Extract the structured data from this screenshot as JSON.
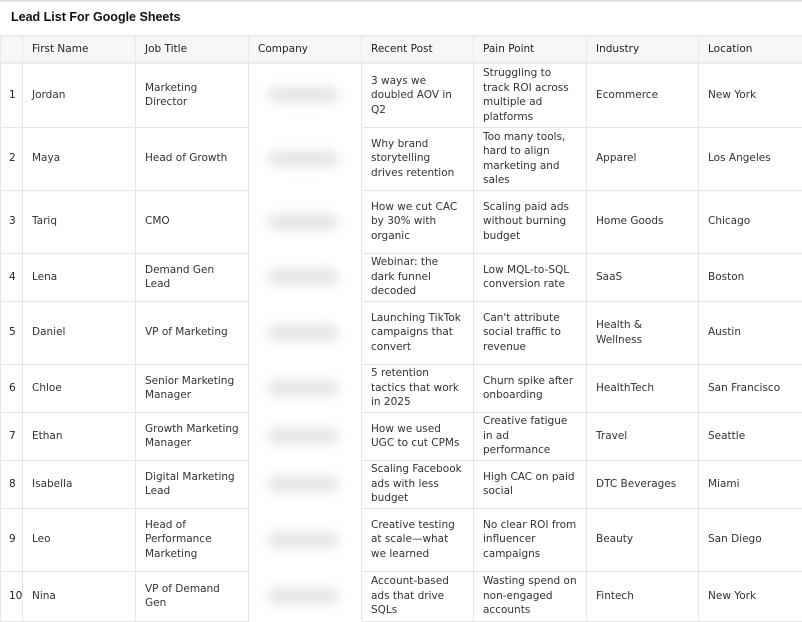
{
  "title": "Lead List For Google Sheets",
  "columns": [
    "",
    "First Name",
    "Job Title",
    "Company",
    "Recent Post",
    "Pain Point",
    "Industry",
    "Location"
  ],
  "rows": [
    {
      "num": "1",
      "first": "Jordan",
      "job": "Marketing Director",
      "post": "3 ways we doubled AOV in Q2",
      "pain": "Struggling to track ROI across multiple ad platforms",
      "industry": "Ecommerce",
      "location": "New York"
    },
    {
      "num": "2",
      "first": "Maya",
      "job": "Head of Growth",
      "post": "Why brand storytelling drives retention",
      "pain": "Too many tools, hard to align marketing and sales",
      "industry": "Apparel",
      "location": "Los Angeles"
    },
    {
      "num": "3",
      "first": "Tariq",
      "job": "CMO",
      "post": "How we cut CAC by 30% with organic",
      "pain": "Scaling paid ads without burning budget",
      "industry": "Home Goods",
      "location": "Chicago"
    },
    {
      "num": "4",
      "first": "Lena",
      "job": "Demand Gen Lead",
      "post": "Webinar: the dark funnel decoded",
      "pain": "Low MQL-to-SQL conversion rate",
      "industry": "SaaS",
      "location": "Boston"
    },
    {
      "num": "5",
      "first": "Daniel",
      "job": "VP of Marketing",
      "post": "Launching TikTok campaigns that convert",
      "pain": "Can't attribute social traffic to revenue",
      "industry": "Health & Wellness",
      "location": "Austin"
    },
    {
      "num": "6",
      "first": "Chloe",
      "job": "Senior Marketing Manager",
      "post": "5 retention tactics that work in 2025",
      "pain": "Churn spike after onboarding",
      "industry": "HealthTech",
      "location": "San Francisco"
    },
    {
      "num": "7",
      "first": "Ethan",
      "job": "Growth Marketing Manager",
      "post": "How we used UGC to cut CPMs",
      "pain": "Creative fatigue in ad performance",
      "industry": "Travel",
      "location": "Seattle"
    },
    {
      "num": "8",
      "first": "Isabella",
      "job": "Digital Marketing Lead",
      "post": "Scaling Facebook ads with less budget",
      "pain": "High CAC on paid social",
      "industry": "DTC Beverages",
      "location": "Miami"
    },
    {
      "num": "9",
      "first": "Leo",
      "job": "Head of Performance Marketing",
      "post": "Creative testing at scale—what we learned",
      "pain": "No clear ROI from influencer campaigns",
      "industry": "Beauty",
      "location": "San Diego"
    },
    {
      "num": "10",
      "first": "Nina",
      "job": "VP of Demand Gen",
      "post": "Account-based ads that drive SQLs",
      "pain": "Wasting spend on non-engaged accounts",
      "industry": "Fintech",
      "location": "New York"
    }
  ]
}
